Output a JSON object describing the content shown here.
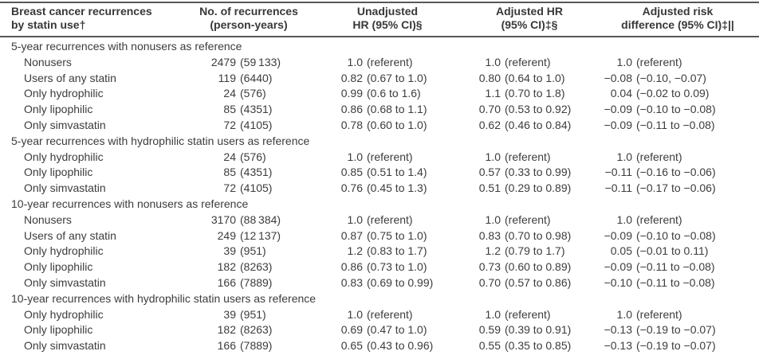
{
  "table": {
    "headers": [
      {
        "line1": "Breast cancer recurrences",
        "line2": "by statin use†"
      },
      {
        "line1": "No. of recurrences",
        "line2": "(person-years)"
      },
      {
        "line1": "Unadjusted",
        "line2": "HR (95% CI)§"
      },
      {
        "line1": "Adjusted HR",
        "line2": "(95% CI)‡§"
      },
      {
        "line1": "Adjusted risk",
        "line2": "difference (95% CI)‡||"
      }
    ],
    "sections": [
      {
        "title": "5-year recurrences with nonusers as reference",
        "rows": [
          {
            "label": "Nonusers",
            "n": "2479",
            "n_paren": "(59 133)",
            "uhr": "1.0",
            "uhr_paren": "(referent)",
            "ahr": "1.0",
            "ahr_paren": "(referent)",
            "rd": "1.0",
            "rd_paren": "(referent)"
          },
          {
            "label": "Users of any statin",
            "n": "119",
            "n_paren": "(6440)",
            "uhr": "0.82",
            "uhr_paren": "(0.67 to 1.0)",
            "ahr": "0.80",
            "ahr_paren": "(0.64 to 1.0)",
            "rd": "−0.08",
            "rd_paren": "(−0.10, −0.07)"
          },
          {
            "label": "Only hydrophilic",
            "n": "24",
            "n_paren": "(576)",
            "uhr": "0.99",
            "uhr_paren": "(0.6 to 1.6)",
            "ahr": "1.1",
            "ahr_paren": "(0.70 to 1.8)",
            "rd": "0.04",
            "rd_paren": "(−0.02 to 0.09)"
          },
          {
            "label": "Only lipophilic",
            "n": "85",
            "n_paren": "(4351)",
            "uhr": "0.86",
            "uhr_paren": "(0.68 to 1.1)",
            "ahr": "0.70",
            "ahr_paren": "(0.53 to 0.92)",
            "rd": "−0.09",
            "rd_paren": "(−0.10 to −0.08)"
          },
          {
            "label": "Only simvastatin",
            "n": "72",
            "n_paren": "(4105)",
            "uhr": "0.78",
            "uhr_paren": "(0.60 to 1.0)",
            "ahr": "0.62",
            "ahr_paren": "(0.46 to 0.84)",
            "rd": "−0.09",
            "rd_paren": "(−0.11 to −0.08)"
          }
        ]
      },
      {
        "title": "5-year recurrences with hydrophilic statin users as reference",
        "rows": [
          {
            "label": "Only hydrophilic",
            "n": "24",
            "n_paren": "(576)",
            "uhr": "1.0",
            "uhr_paren": "(referent)",
            "ahr": "1.0",
            "ahr_paren": "(referent)",
            "rd": "1.0",
            "rd_paren": "(referent)"
          },
          {
            "label": "Only lipophilic",
            "n": "85",
            "n_paren": "(4351)",
            "uhr": "0.85",
            "uhr_paren": "(0.51 to 1.4)",
            "ahr": "0.57",
            "ahr_paren": "(0.33 to 0.99)",
            "rd": "−0.11",
            "rd_paren": "(−0.16 to −0.06)"
          },
          {
            "label": "Only simvastatin",
            "n": "72",
            "n_paren": "(4105)",
            "uhr": "0.76",
            "uhr_paren": "(0.45 to 1.3)",
            "ahr": "0.51",
            "ahr_paren": "(0.29 to 0.89)",
            "rd": "−0.11",
            "rd_paren": "(−0.17 to −0.06)"
          }
        ]
      },
      {
        "title": "10-year recurrences with nonusers as reference",
        "rows": [
          {
            "label": "Nonusers",
            "n": "3170",
            "n_paren": "(88 384)",
            "uhr": "1.0",
            "uhr_paren": "(referent)",
            "ahr": "1.0",
            "ahr_paren": "(referent)",
            "rd": "1.0",
            "rd_paren": "(referent)"
          },
          {
            "label": "Users of any statin",
            "n": "249",
            "n_paren": "(12 137)",
            "uhr": "0.87",
            "uhr_paren": "(0.75 to 1.0)",
            "ahr": "0.83",
            "ahr_paren": "(0.70 to 0.98)",
            "rd": "−0.09",
            "rd_paren": "(−0.10 to −0.08)"
          },
          {
            "label": "Only hydrophilic",
            "n": "39",
            "n_paren": "(951)",
            "uhr": "1.2",
            "uhr_paren": "(0.83 to 1.7)",
            "ahr": "1.2",
            "ahr_paren": "(0.79 to 1.7)",
            "rd": "0.05",
            "rd_paren": "(−0.01 to 0.11)"
          },
          {
            "label": "Only lipophilic",
            "n": "182",
            "n_paren": "(8263)",
            "uhr": "0.86",
            "uhr_paren": "(0.73 to 1.0)",
            "ahr": "0.73",
            "ahr_paren": "(0.60 to 0.89)",
            "rd": "−0.09",
            "rd_paren": "(−0.11 to −0.08)"
          },
          {
            "label": "Only simvastatin",
            "n": "166",
            "n_paren": "(7889)",
            "uhr": "0.83",
            "uhr_paren": "(0.69 to 0.99)",
            "ahr": "0.70",
            "ahr_paren": "(0.57 to 0.86)",
            "rd": "−0.10",
            "rd_paren": "(−0.11 to −0.08)"
          }
        ]
      },
      {
        "title": "10-year recurrences with hydrophilic statin users as reference",
        "rows": [
          {
            "label": "Only hydrophilic",
            "n": "39",
            "n_paren": "(951)",
            "uhr": "1.0",
            "uhr_paren": "(referent)",
            "ahr": "1.0",
            "ahr_paren": "(referent)",
            "rd": "1.0",
            "rd_paren": "(referent)"
          },
          {
            "label": "Only lipophilic",
            "n": "182",
            "n_paren": "(8263)",
            "uhr": "0.69",
            "uhr_paren": "(0.47 to 1.0)",
            "ahr": "0.59",
            "ahr_paren": "(0.39 to 0.91)",
            "rd": "−0.13",
            "rd_paren": "(−0.19 to −0.07)"
          },
          {
            "label": "Only simvastatin",
            "n": "166",
            "n_paren": "(7889)",
            "uhr": "0.65",
            "uhr_paren": "(0.43 to 0.96)",
            "ahr": "0.55",
            "ahr_paren": "(0.35 to 0.85)",
            "rd": "−0.13",
            "rd_paren": "(−0.19 to −0.07)"
          }
        ]
      }
    ]
  }
}
